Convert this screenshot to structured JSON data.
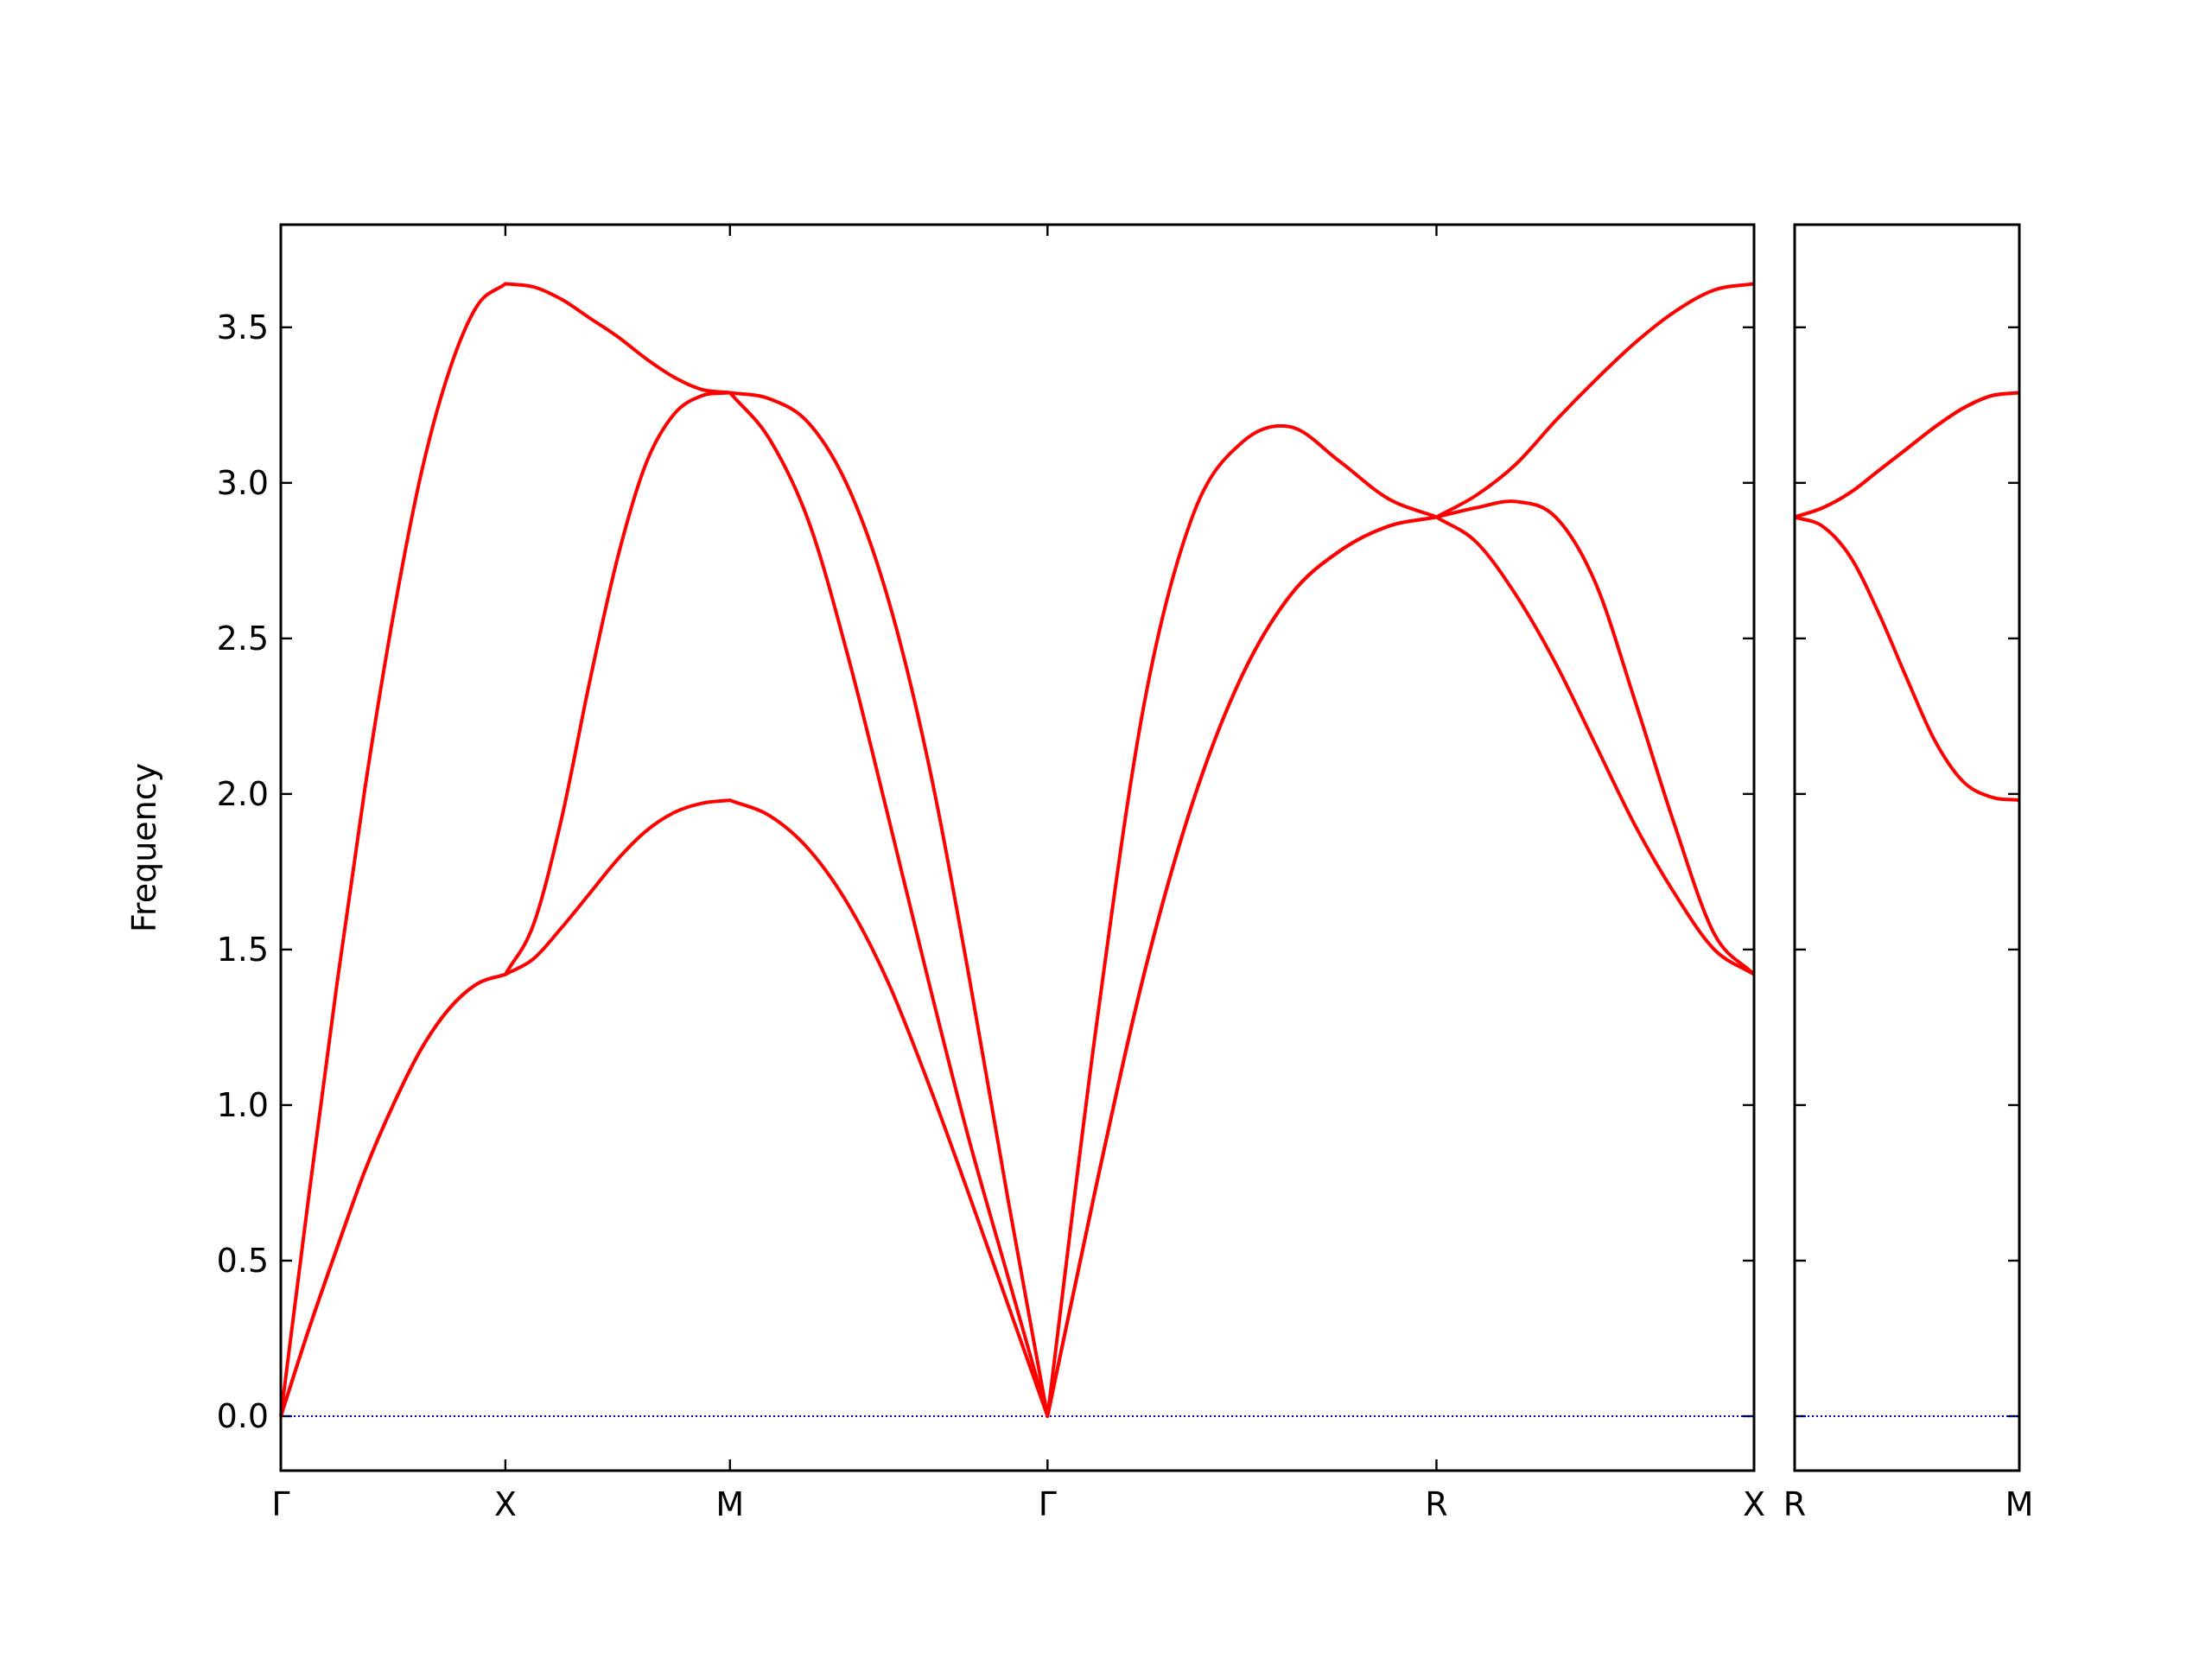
{
  "chart_data": [
    {
      "type": "line",
      "ylabel": "Frequency",
      "x": [
        0,
        0.0625,
        0.125,
        0.1875,
        0.25,
        0.3125,
        0.375,
        0.4375,
        0.5,
        0.5625,
        0.625,
        0.6875,
        0.75,
        0.8125,
        0.875,
        0.9375,
        1,
        1.0884,
        1.1768,
        1.2652,
        1.3536,
        1.4419,
        1.5303,
        1.6187,
        1.7071,
        1.8154,
        1.9236,
        2.0319,
        2.1401,
        2.2484,
        2.3566,
        2.4649,
        2.5731,
        2.6615,
        2.7499,
        2.8383,
        2.9267,
        3.015,
        3.1034,
        3.1918,
        3.2802
      ],
      "series": [
        {
          "color": "#ff0000",
          "values": [
            0,
            0.28,
            0.54,
            0.79,
            1.0,
            1.18,
            1.31,
            1.39,
            1.42,
            1.47,
            1.57,
            1.68,
            1.79,
            1.88,
            1.94,
            1.97,
            1.98,
            1.93,
            1.82,
            1.64,
            1.39,
            1.07,
            0.72,
            0.36,
            0,
            0.74,
            1.43,
            1.98,
            2.38,
            2.64,
            2.78,
            2.86,
            2.89,
            2.81,
            2.64,
            2.42,
            2.16,
            1.9,
            1.68,
            1.5,
            1.42
          ]
        },
        {
          "color": "#ff0000",
          "values": [
            0,
            0.28,
            0.54,
            0.79,
            1.0,
            1.18,
            1.31,
            1.39,
            1.42,
            1.58,
            1.92,
            2.36,
            2.76,
            3.06,
            3.22,
            3.28,
            3.29,
            3.14,
            2.87,
            2.43,
            1.92,
            1.4,
            0.9,
            0.45,
            0,
            0.74,
            1.43,
            1.98,
            2.38,
            2.64,
            2.78,
            2.86,
            2.89,
            2.92,
            2.94,
            2.89,
            2.68,
            2.3,
            1.9,
            1.55,
            1.42
          ]
        },
        {
          "color": "#ff0000",
          "values": [
            0,
            0.71,
            1.39,
            2.02,
            2.57,
            3.03,
            3.36,
            3.57,
            3.64,
            3.63,
            3.59,
            3.53,
            3.47,
            3.4,
            3.34,
            3.3,
            3.29,
            3.27,
            3.19,
            2.98,
            2.62,
            2.1,
            1.43,
            0.7,
            0,
            1.25,
            2.3,
            2.9,
            3.13,
            3.18,
            3.07,
            2.95,
            2.89,
            2.96,
            3.06,
            3.2,
            3.33,
            3.45,
            3.55,
            3.62,
            3.64
          ]
        }
      ],
      "xlim": [
        0,
        3.2802
      ],
      "xticks": [
        {
          "value": 0,
          "label": "Γ"
        },
        {
          "value": 0.5,
          "label": "X"
        },
        {
          "value": 1,
          "label": "M"
        },
        {
          "value": 1.7071,
          "label": "Γ"
        },
        {
          "value": 2.5731,
          "label": "R"
        },
        {
          "value": 3.2802,
          "label": "X"
        }
      ],
      "ylim": [
        -0.175,
        3.83
      ],
      "yticks": [
        {
          "value": 0,
          "label": "0.0"
        },
        0.5,
        {
          "value": 1,
          "label": "1.0"
        },
        1.5,
        {
          "value": 2,
          "label": "2.0"
        },
        2.5,
        {
          "value": 3,
          "label": "3.0"
        },
        3.5
      ],
      "hline": 0,
      "hline_color": "#0000cc"
    },
    {
      "type": "line",
      "sharey": true,
      "x": [
        0,
        0.0625,
        0.125,
        0.1875,
        0.25,
        0.3125,
        0.375,
        0.4375,
        0.5
      ],
      "series": [
        {
          "color": "#ff0000",
          "values": [
            2.89,
            2.86,
            2.76,
            2.58,
            2.37,
            2.17,
            2.04,
            1.99,
            1.98
          ]
        },
        {
          "color": "#ff0000",
          "values": [
            2.89,
            2.92,
            2.97,
            3.04,
            3.11,
            3.18,
            3.24,
            3.28,
            3.29
          ]
        },
        {
          "color": "#ff0000",
          "values": [
            2.89,
            2.92,
            2.97,
            3.04,
            3.11,
            3.18,
            3.24,
            3.28,
            3.29
          ]
        }
      ],
      "xlim": [
        0,
        0.5
      ],
      "xticks": [
        {
          "value": 0,
          "label": "R"
        },
        {
          "value": 0.5,
          "label": "M"
        }
      ],
      "hline": 0,
      "hline_color": "#0000cc"
    }
  ]
}
